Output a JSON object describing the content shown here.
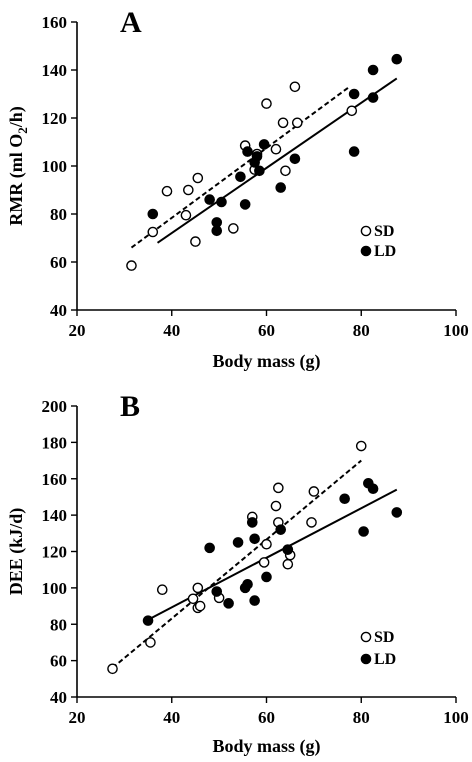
{
  "chart_data": [
    {
      "type": "scatter",
      "panel_label": "A",
      "ylabel_main": "RMR (ml O",
      "ylabel_sub": "2",
      "ylabel_end": "/h)",
      "xlabel": "Body mass (g)",
      "xlim": [
        20,
        100
      ],
      "ylim": [
        40,
        160
      ],
      "xticks": [
        20,
        40,
        60,
        80,
        100
      ],
      "yticks": [
        40,
        60,
        80,
        100,
        120,
        140,
        160
      ],
      "legend_position": "bottom-right",
      "series": [
        {
          "name": "SD",
          "marker": "open-circle",
          "points": [
            [
              31.5,
              58.5
            ],
            [
              36,
              72.5
            ],
            [
              39,
              89.5
            ],
            [
              43,
              79.5
            ],
            [
              43.5,
              90
            ],
            [
              45,
              68.5
            ],
            [
              45.5,
              95
            ],
            [
              53,
              74
            ],
            [
              55.5,
              108.5
            ],
            [
              57.5,
              98.5
            ],
            [
              58,
              105
            ],
            [
              60,
              126
            ],
            [
              62,
              107
            ],
            [
              63.5,
              118
            ],
            [
              64,
              98
            ],
            [
              66,
              133
            ],
            [
              66.5,
              118
            ],
            [
              78,
              123
            ]
          ],
          "fit": [
            [
              31.5,
              66
            ],
            [
              77.5,
              133
            ]
          ],
          "fit_style": "dashed"
        },
        {
          "name": "LD",
          "marker": "filled-circle",
          "points": [
            [
              36,
              80
            ],
            [
              48,
              86
            ],
            [
              49.5,
              76.5
            ],
            [
              49.5,
              73
            ],
            [
              50.5,
              85
            ],
            [
              54.5,
              95.5
            ],
            [
              55.5,
              84
            ],
            [
              56,
              106
            ],
            [
              57.5,
              101.5
            ],
            [
              58,
              104
            ],
            [
              58.5,
              98
            ],
            [
              59.5,
              109
            ],
            [
              63,
              91
            ],
            [
              66,
              103
            ],
            [
              78.5,
              130
            ],
            [
              78.5,
              106
            ],
            [
              82.5,
              128.5
            ],
            [
              82.5,
              140
            ],
            [
              87.5,
              144.5
            ]
          ],
          "fit": [
            [
              37,
              68
            ],
            [
              87.5,
              136.5
            ]
          ],
          "fit_style": "solid"
        }
      ]
    },
    {
      "type": "scatter",
      "panel_label": "B",
      "ylabel_main": "DEE (kJ/d)",
      "xlabel": "Body mass (g)",
      "xlim": [
        20,
        100
      ],
      "ylim": [
        40,
        200
      ],
      "xticks": [
        20,
        40,
        60,
        80,
        100
      ],
      "yticks": [
        40,
        60,
        80,
        100,
        120,
        140,
        160,
        180,
        200
      ],
      "legend_position": "bottom-right",
      "series": [
        {
          "name": "SD",
          "marker": "open-circle",
          "points": [
            [
              27.5,
              55.5
            ],
            [
              35.5,
              70
            ],
            [
              38,
              99
            ],
            [
              44.5,
              94
            ],
            [
              45.5,
              89
            ],
            [
              45.5,
              100
            ],
            [
              46,
              90
            ],
            [
              50,
              94.5
            ],
            [
              57,
              139
            ],
            [
              59.5,
              114
            ],
            [
              60,
              124
            ],
            [
              62,
              145
            ],
            [
              62.5,
              155
            ],
            [
              62.5,
              136
            ],
            [
              64.5,
              113
            ],
            [
              64.5,
              121
            ],
            [
              65,
              118
            ],
            [
              69.5,
              136
            ],
            [
              70,
              153
            ],
            [
              80,
              178
            ]
          ],
          "fit": [
            [
              27.5,
              56
            ],
            [
              80,
              170
            ]
          ],
          "fit_style": "dashed"
        },
        {
          "name": "LD",
          "marker": "filled-circle",
          "points": [
            [
              35,
              82
            ],
            [
              48,
              122
            ],
            [
              49.5,
              98
            ],
            [
              52,
              91.5
            ],
            [
              54,
              125
            ],
            [
              55.5,
              100
            ],
            [
              56,
              102
            ],
            [
              57,
              136
            ],
            [
              57.5,
              127
            ],
            [
              57.5,
              93
            ],
            [
              60,
              106
            ],
            [
              63,
              132
            ],
            [
              64.5,
              121
            ],
            [
              76.5,
              149
            ],
            [
              80.5,
              131
            ],
            [
              81.5,
              157.5
            ],
            [
              82.5,
              154.5
            ],
            [
              87.5,
              141.5
            ]
          ],
          "fit": [
            [
              35,
              82.5
            ],
            [
              87.5,
              154
            ]
          ],
          "fit_style": "solid"
        }
      ]
    }
  ]
}
